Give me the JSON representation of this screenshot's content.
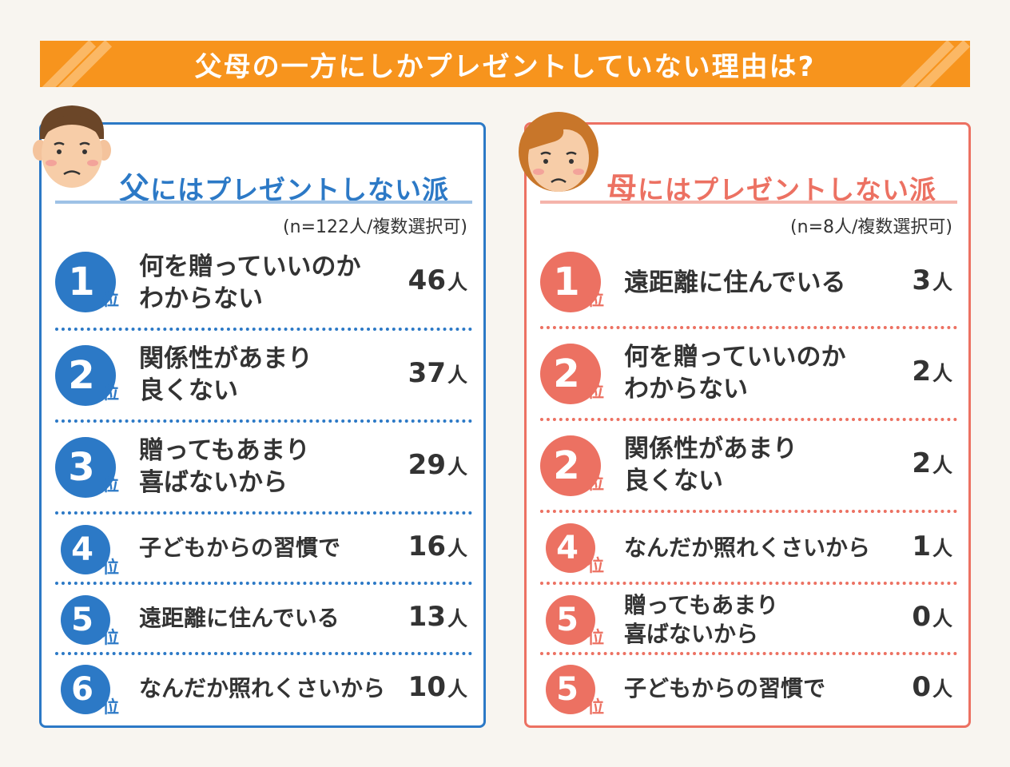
{
  "title": "父母の一方にしかプレゼントしていない理由は?",
  "colors": {
    "title_bg": "#f7941d",
    "father": "#2c79c6",
    "mother": "#ec7162"
  },
  "father_panel": {
    "heading_accent": "父",
    "heading_rest": "にはプレゼントしない派",
    "sample_note": "(n=122人/複数選択可)",
    "rank_suffix": "位",
    "count_unit": "人",
    "items": [
      {
        "rank": "1",
        "reason_line1": "何を贈っていいのか",
        "reason_line2": "わからない",
        "count": "46"
      },
      {
        "rank": "2",
        "reason_line1": "関係性があまり",
        "reason_line2": "良くない",
        "count": "37"
      },
      {
        "rank": "3",
        "reason_line1": "贈ってもあまり",
        "reason_line2": "喜ばないから",
        "count": "29"
      },
      {
        "rank": "4",
        "reason_line1": "子どもからの習慣で",
        "count": "16"
      },
      {
        "rank": "5",
        "reason_line1": "遠距離に住んでいる",
        "count": "13"
      },
      {
        "rank": "6",
        "reason_line1": "なんだか照れくさいから",
        "count": "10"
      }
    ]
  },
  "mother_panel": {
    "heading_accent": "母",
    "heading_rest": "にはプレゼントしない派",
    "sample_note": "(n=8人/複数選択可)",
    "rank_suffix": "位",
    "count_unit": "人",
    "items": [
      {
        "rank": "1",
        "reason_line1": "遠距離に住んでいる",
        "count": "3"
      },
      {
        "rank": "2",
        "reason_line1": "何を贈っていいのか",
        "reason_line2": "わからない",
        "count": "2"
      },
      {
        "rank": "2",
        "reason_line1": "関係性があまり",
        "reason_line2": "良くない",
        "count": "2"
      },
      {
        "rank": "4",
        "reason_line1": "なんだか照れくさいから",
        "count": "1"
      },
      {
        "rank": "5",
        "reason_line1": "贈ってもあまり",
        "reason_line2": "喜ばないから",
        "count": "0"
      },
      {
        "rank": "5",
        "reason_line1": "子どもからの習慣で",
        "count": "0"
      }
    ]
  }
}
